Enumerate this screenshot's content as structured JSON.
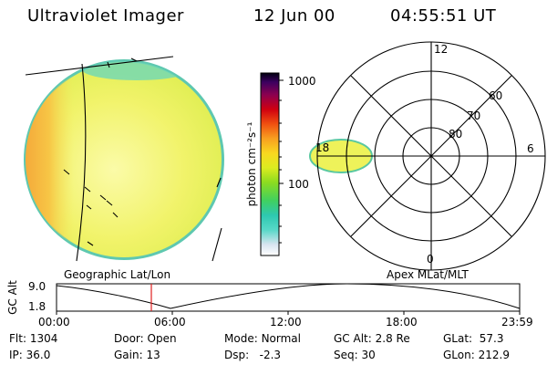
{
  "header": {
    "title": "Ultraviolet Imager",
    "date": "12 Jun 00",
    "time": "04:55:51 UT"
  },
  "colorbar": {
    "unit_label": "photon cm⁻²s⁻¹",
    "ticks": [
      "1000",
      "100"
    ]
  },
  "polar_plot": {
    "mlt_labels": {
      "top": "12",
      "right": "6",
      "bottom": "0",
      "left": "18"
    },
    "lat_labels": [
      "60",
      "70",
      "80"
    ]
  },
  "section_labels": {
    "geo": "Geographic Lat/Lon",
    "apex": "Apex MLat/MLT"
  },
  "altitude_plot": {
    "ylabel": "GC Alt",
    "yticks": [
      "9.0",
      "1.8"
    ],
    "xticks": [
      "00:00",
      "06:00",
      "12:00",
      "18:00",
      "23:59"
    ],
    "current_time_marker": "04:55"
  },
  "info": {
    "flt": {
      "label": "Flt:",
      "value": "1304"
    },
    "ip": {
      "label": "IP:",
      "value": "36.0"
    },
    "door": {
      "label": "Door:",
      "value": "Open"
    },
    "gain": {
      "label": "Gain:",
      "value": "13"
    },
    "mode": {
      "label": "Mode:",
      "value": "Normal"
    },
    "dsp": {
      "label": "Dsp:",
      "value": "-2.3"
    },
    "gcalt": {
      "label": "GC Alt:",
      "value": "2.8 Re"
    },
    "seq": {
      "label": "Seq:",
      "value": "30"
    },
    "glat": {
      "label": "GLat:",
      "value": "57.3"
    },
    "glon": {
      "label": "GLon:",
      "value": "212.9"
    }
  },
  "colors": {
    "disk_main": "#eef25a",
    "disk_orange": "#f5b030",
    "disk_edge": "#5ac8a0",
    "marker": "#e02020"
  }
}
